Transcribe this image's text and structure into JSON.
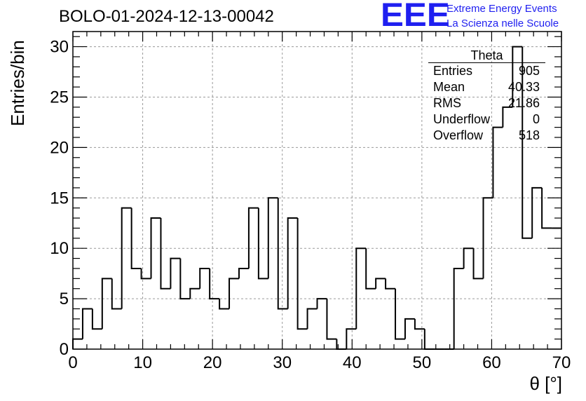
{
  "header": {
    "run_title": "BOLO-01-2024-12-13-00042",
    "logo_text": "EEE",
    "logo_line1": "Extreme Energy Events",
    "logo_line2": "La Scienza nelle Scuole",
    "logo_color": "#1f1ff0"
  },
  "stats_box": {
    "title": "Theta",
    "rows": [
      {
        "label": "Entries",
        "value": "905"
      },
      {
        "label": "Mean",
        "value": "40.33"
      },
      {
        "label": "RMS",
        "value": "21.86"
      },
      {
        "label": "Underflow",
        "value": "0"
      },
      {
        "label": "Overflow",
        "value": "518"
      }
    ]
  },
  "chart_data": {
    "type": "bar",
    "histogram": true,
    "title": "BOLO-01-2024-12-13-00042",
    "xlabel": "θ [°]",
    "ylabel": "Entries/bin",
    "xlim": [
      0,
      70
    ],
    "ylim": [
      0,
      31.5
    ],
    "bin_width": 1.4,
    "x_ticks": [
      0,
      10,
      20,
      30,
      40,
      50,
      60,
      70
    ],
    "y_ticks": [
      0,
      5,
      10,
      15,
      20,
      25,
      30
    ],
    "grid": true,
    "line_color": "#000000",
    "values": [
      1,
      4,
      2,
      7,
      4,
      14,
      8,
      7,
      13,
      6,
      9,
      5,
      6,
      8,
      5,
      4,
      7,
      8,
      14,
      7,
      15,
      4,
      13,
      2,
      4,
      5,
      1,
      0,
      2,
      10,
      6,
      7,
      6,
      1,
      3,
      2,
      0,
      0,
      0,
      8,
      10,
      7,
      15,
      22,
      24,
      30,
      11,
      16,
      12,
      12
    ]
  }
}
